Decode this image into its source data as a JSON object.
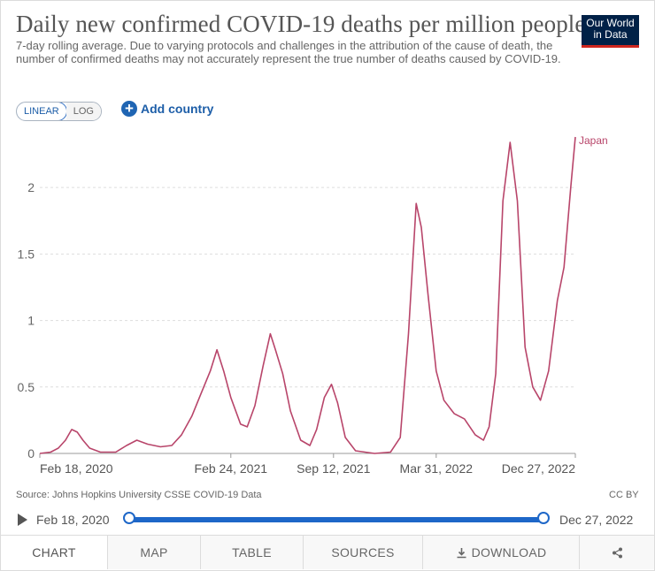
{
  "header": {
    "title": "Daily new confirmed COVID-19 deaths per million people",
    "subtitle": "7-day rolling average. Due to varying protocols and challenges in the attribution of the cause of death, the number of confirmed deaths may not accurately represent the true number of deaths caused by COVID-19.",
    "logo_line1": "Our World",
    "logo_line2": "in Data"
  },
  "controls": {
    "linear_label": "LINEAR",
    "log_label": "LOG",
    "active_scale": "LINEAR",
    "add_country_label": "Add country",
    "add_icon": "plus-circle-icon"
  },
  "chart_data": {
    "type": "line",
    "title": "Daily new confirmed COVID-19 deaths per million people",
    "xlabel": "",
    "ylabel": "",
    "x_tick_labels": [
      "Feb 18, 2020",
      "Feb 24, 2021",
      "Sep 12, 2021",
      "Mar 31, 2022",
      "Dec 27, 2022"
    ],
    "y_tick_labels": [
      "0",
      "0.5",
      "1",
      "1.5",
      "2"
    ],
    "ylim": [
      0,
      2.4
    ],
    "xlim": [
      "2020-02-18",
      "2022-12-27"
    ],
    "grid": "horizontal dashed",
    "legend": "end-of-line label",
    "series": [
      {
        "name": "Japan",
        "color": "#b8456a",
        "points": [
          [
            "2020-02-18",
            0.0
          ],
          [
            "2020-03-10",
            0.01
          ],
          [
            "2020-03-25",
            0.04
          ],
          [
            "2020-04-08",
            0.1
          ],
          [
            "2020-04-20",
            0.18
          ],
          [
            "2020-05-01",
            0.16
          ],
          [
            "2020-05-12",
            0.1
          ],
          [
            "2020-05-25",
            0.04
          ],
          [
            "2020-06-15",
            0.01
          ],
          [
            "2020-07-15",
            0.01
          ],
          [
            "2020-08-05",
            0.06
          ],
          [
            "2020-08-25",
            0.1
          ],
          [
            "2020-09-15",
            0.07
          ],
          [
            "2020-10-10",
            0.05
          ],
          [
            "2020-11-01",
            0.06
          ],
          [
            "2020-11-20",
            0.14
          ],
          [
            "2020-12-10",
            0.28
          ],
          [
            "2020-12-28",
            0.45
          ],
          [
            "2021-01-15",
            0.62
          ],
          [
            "2021-01-28",
            0.78
          ],
          [
            "2021-02-10",
            0.62
          ],
          [
            "2021-02-24",
            0.42
          ],
          [
            "2021-03-15",
            0.22
          ],
          [
            "2021-03-28",
            0.2
          ],
          [
            "2021-04-12",
            0.36
          ],
          [
            "2021-04-28",
            0.66
          ],
          [
            "2021-05-12",
            0.9
          ],
          [
            "2021-05-22",
            0.78
          ],
          [
            "2021-06-05",
            0.6
          ],
          [
            "2021-06-20",
            0.32
          ],
          [
            "2021-07-10",
            0.1
          ],
          [
            "2021-07-28",
            0.06
          ],
          [
            "2021-08-10",
            0.18
          ],
          [
            "2021-08-25",
            0.42
          ],
          [
            "2021-09-08",
            0.52
          ],
          [
            "2021-09-20",
            0.38
          ],
          [
            "2021-10-05",
            0.12
          ],
          [
            "2021-10-25",
            0.02
          ],
          [
            "2021-12-01",
            0.0
          ],
          [
            "2022-01-01",
            0.01
          ],
          [
            "2022-01-20",
            0.12
          ],
          [
            "2022-02-05",
            0.9
          ],
          [
            "2022-02-20",
            1.88
          ],
          [
            "2022-03-02",
            1.7
          ],
          [
            "2022-03-15",
            1.2
          ],
          [
            "2022-03-31",
            0.62
          ],
          [
            "2022-04-15",
            0.4
          ],
          [
            "2022-05-05",
            0.3
          ],
          [
            "2022-05-25",
            0.26
          ],
          [
            "2022-06-15",
            0.14
          ],
          [
            "2022-07-01",
            0.1
          ],
          [
            "2022-07-12",
            0.2
          ],
          [
            "2022-07-25",
            0.6
          ],
          [
            "2022-08-08",
            1.9
          ],
          [
            "2022-08-22",
            2.34
          ],
          [
            "2022-09-05",
            1.9
          ],
          [
            "2022-09-20",
            0.8
          ],
          [
            "2022-10-05",
            0.5
          ],
          [
            "2022-10-20",
            0.4
          ],
          [
            "2022-11-05",
            0.62
          ],
          [
            "2022-11-22",
            1.15
          ],
          [
            "2022-12-05",
            1.4
          ],
          [
            "2022-12-18",
            2.0
          ],
          [
            "2022-12-27",
            2.38
          ]
        ]
      }
    ]
  },
  "footer": {
    "source": "Source: Johns Hopkins University CSSE COVID-19 Data",
    "license": "CC BY"
  },
  "timeline": {
    "start_label": "Feb 18, 2020",
    "end_label": "Dec 27, 2022",
    "play_icon": "play-icon"
  },
  "tabs": [
    {
      "label": "CHART",
      "active": true
    },
    {
      "label": "MAP",
      "active": false
    },
    {
      "label": "TABLE",
      "active": false
    },
    {
      "label": "SOURCES",
      "active": false
    },
    {
      "label": "DOWNLOAD",
      "active": false,
      "icon": "download-icon"
    },
    {
      "label": "",
      "active": false,
      "icon": "share-icon"
    }
  ]
}
